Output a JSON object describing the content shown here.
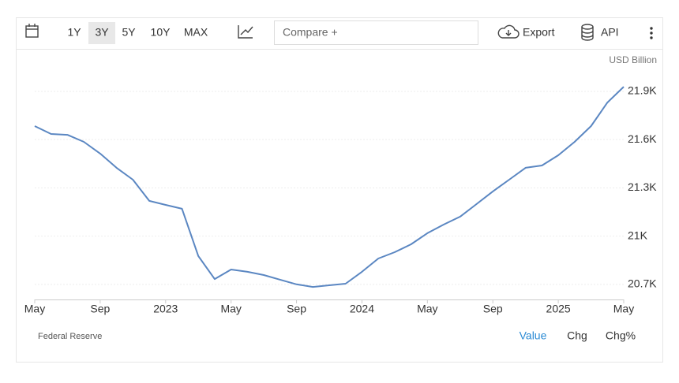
{
  "toolbar": {
    "ranges": [
      "1Y",
      "3Y",
      "5Y",
      "10Y",
      "MAX"
    ],
    "active_range": 1,
    "compare": "Compare +",
    "export": "Export",
    "api": "API"
  },
  "chart_data": {
    "type": "line",
    "unit": "USD Billion",
    "source": "Federal Reserve",
    "x": [
      "2022-05",
      "2022-06",
      "2022-07",
      "2022-08",
      "2022-09",
      "2022-10",
      "2022-11",
      "2022-12",
      "2023-01",
      "2023-02",
      "2023-03",
      "2023-04",
      "2023-05",
      "2023-06",
      "2023-07",
      "2023-08",
      "2023-09",
      "2023-10",
      "2023-11",
      "2023-12",
      "2024-01",
      "2024-02",
      "2024-03",
      "2024-04",
      "2024-05",
      "2024-06",
      "2024-07",
      "2024-08",
      "2024-09",
      "2024-10",
      "2024-11",
      "2024-12",
      "2025-01",
      "2025-02",
      "2025-03",
      "2025-04",
      "2025-05"
    ],
    "series": [
      {
        "color": "#5b87c2",
        "values": [
          21684,
          21635,
          21630,
          21586,
          21513,
          21425,
          21351,
          21219,
          21194,
          21170,
          20876,
          20733,
          20792,
          20778,
          20758,
          20729,
          20700,
          20684,
          20694,
          20704,
          20778,
          20861,
          20900,
          20949,
          21018,
          21072,
          21121,
          21199,
          21278,
          21351,
          21425,
          21439,
          21503,
          21586,
          21684,
          21831,
          21929
        ]
      }
    ],
    "ylim": [
      20606,
      21993
    ],
    "yticks": [
      {
        "value": 20700,
        "label": "20.7K"
      },
      {
        "value": 21000,
        "label": "21K"
      },
      {
        "value": 21300,
        "label": "21.3K"
      },
      {
        "value": 21600,
        "label": "21.6K"
      },
      {
        "value": 21900,
        "label": "21.9K"
      }
    ],
    "xlim": [
      "2022-05",
      "2025-05"
    ],
    "xticks": [
      {
        "value": "2022-05",
        "label": "May"
      },
      {
        "value": "2022-09",
        "label": "Sep"
      },
      {
        "value": "2023-01",
        "label": "2023"
      },
      {
        "value": "2023-05",
        "label": "May"
      },
      {
        "value": "2023-09",
        "label": "Sep"
      },
      {
        "value": "2024-01",
        "label": "2024"
      },
      {
        "value": "2024-05",
        "label": "May"
      },
      {
        "value": "2024-09",
        "label": "Sep"
      },
      {
        "value": "2025-01",
        "label": "2025"
      },
      {
        "value": "2025-05",
        "label": "May"
      }
    ],
    "grid": true,
    "views": [
      "Value",
      "Chg",
      "Chg%"
    ],
    "active_view": 0
  }
}
